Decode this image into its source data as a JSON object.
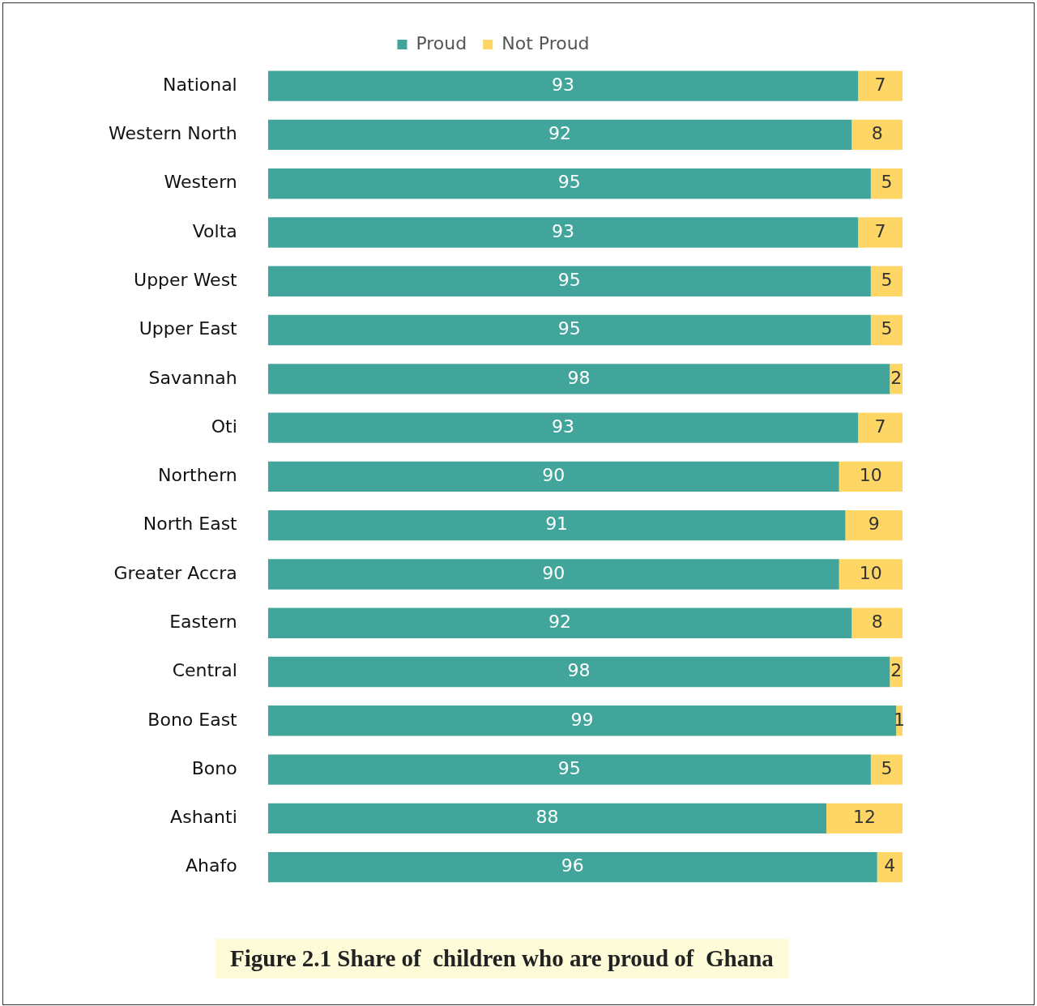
{
  "chart_data": {
    "type": "bar",
    "orientation": "horizontal",
    "title": "Figure 2.1 Share of  children who are proud of  Ghana",
    "categories": [
      "National",
      "Western North",
      "Western",
      "Volta",
      "Upper West",
      "Upper East",
      "Savannah",
      "Oti",
      "Northern",
      "North East",
      "Greater Accra",
      "Eastern",
      "Central",
      "Bono East",
      "Bono",
      "Ashanti",
      "Ahafo"
    ],
    "series": [
      {
        "name": "Proud",
        "color": "#41a59b",
        "values": [
          93,
          92,
          95,
          93,
          95,
          95,
          98,
          93,
          90,
          91,
          90,
          92,
          98,
          99,
          95,
          88,
          96
        ]
      },
      {
        "name": "Not Proud",
        "color": "#fdd666",
        "values": [
          7,
          8,
          5,
          7,
          5,
          5,
          2,
          7,
          10,
          9,
          10,
          8,
          2,
          1,
          5,
          12,
          4
        ]
      }
    ],
    "stacked": true,
    "xlim": [
      0,
      100
    ],
    "data_labels": true,
    "legend": "top",
    "tick_labels": "y"
  }
}
